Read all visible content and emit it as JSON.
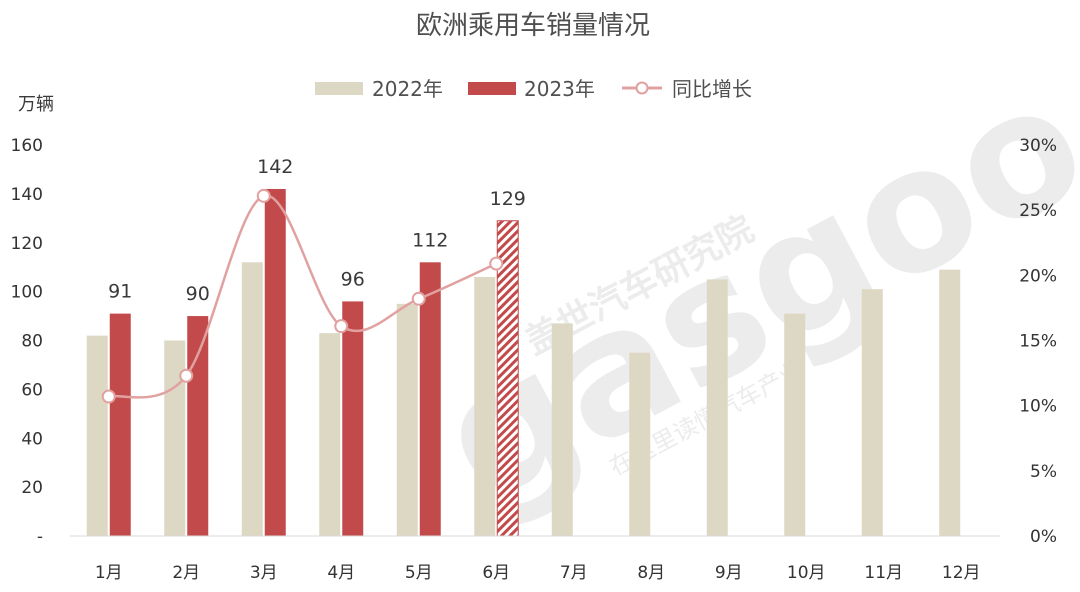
{
  "colors": {
    "series_2022": "#ddd8c3",
    "series_2023": "#c34a4a",
    "growth_line": "#e2a1a1",
    "watermark": "#ececec",
    "axis": "#d9d9d9",
    "text": "#404040"
  },
  "chart_data": {
    "type": "bar",
    "title": "欧洲乘用车销量情况",
    "ylabel": "万辆",
    "categories": [
      "1月",
      "2月",
      "3月",
      "4月",
      "5月",
      "6月",
      "7月",
      "8月",
      "9月",
      "10月",
      "11月",
      "12月"
    ],
    "ylim": [
      0,
      160
    ],
    "yticks": [
      "-",
      "20",
      "40",
      "60",
      "80",
      "100",
      "120",
      "140",
      "160"
    ],
    "y2lim": [
      0,
      30
    ],
    "y2ticks": [
      "0%",
      "5%",
      "10%",
      "15%",
      "20%",
      "25%",
      "30%"
    ],
    "series": [
      {
        "name": "2022年",
        "type": "bar",
        "values": [
          82,
          80,
          112,
          83,
          95,
          106,
          87,
          75,
          105,
          91,
          101,
          109
        ]
      },
      {
        "name": "2023年",
        "type": "bar",
        "values": [
          91,
          90,
          142,
          96,
          112,
          129,
          null,
          null,
          null,
          null,
          null,
          null
        ],
        "labels": [
          "91",
          "90",
          "142",
          "96",
          "112",
          "129"
        ],
        "hatched_index": 5
      },
      {
        "name": "同比增长",
        "type": "line",
        "axis": "right",
        "values": [
          10.7,
          12.3,
          26.1,
          16.1,
          18.2,
          20.9,
          null,
          null,
          null,
          null,
          null,
          null
        ]
      }
    ],
    "legend_position": "top-center",
    "grid": false
  },
  "watermark": {
    "logo_text": "gasgoo",
    "company": "盖世汽车研究院",
    "slogan": "在这里读懂汽车产业"
  }
}
